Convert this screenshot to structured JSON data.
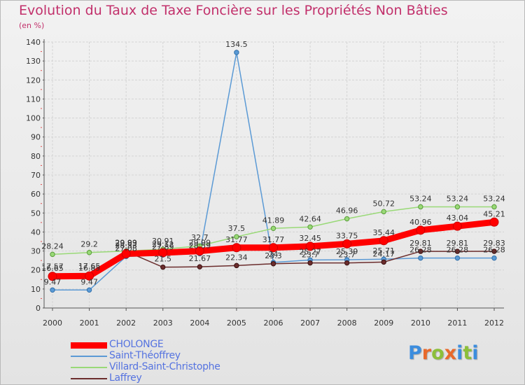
{
  "title": "Evolution du Taux de Taxe Foncière sur les Propriétés Non Bâties",
  "unit": "(en %)",
  "logo": {
    "letters": [
      "P",
      "r",
      "o",
      "x",
      "i",
      "t",
      "i"
    ],
    "colors": [
      "#3c8dde",
      "#e8692b",
      "#8cbf3a",
      "#e8692b",
      "#3c8dde",
      "#8cbf3a",
      "#3c8dde"
    ]
  },
  "chart_data": {
    "type": "line",
    "title": "Evolution du Taux de Taxe Foncière sur les Propriétés Non Bâties",
    "ylabel": "(en %)",
    "categories": [
      "2000",
      "2001",
      "2002",
      "2003",
      "2004",
      "2005",
      "2006",
      "2007",
      "2008",
      "2009",
      "2010",
      "2011",
      "2012"
    ],
    "ylim": [
      0,
      140
    ],
    "yticks": [
      0,
      10,
      20,
      30,
      40,
      50,
      60,
      70,
      80,
      90,
      100,
      110,
      120,
      130,
      140
    ],
    "grid": true,
    "series": [
      {
        "name": "CHOLONGE",
        "color": "#ff0000",
        "thick": true,
        "values": [
          16.65,
          16.85,
          28.53,
          29.12,
          29.99,
          31.77,
          31.77,
          32.45,
          33.75,
          35.44,
          40.96,
          43.04,
          45.21
        ],
        "labels": [
          "16.65",
          "16.85",
          "28.53",
          "29.12",
          "29.99",
          "31.77",
          "31.77",
          "32.45",
          "33.75",
          "35.44",
          "40.96",
          "43.04",
          "45.21"
        ]
      },
      {
        "name": "Saint-Théoffrey",
        "color": "#5b9ad5",
        "values": [
          9.47,
          9.47,
          27.08,
          27.89,
          28.59,
          134.5,
          24.0,
          25.27,
          25.39,
          25.71,
          26.28,
          26.28,
          26.28
        ],
        "labels": [
          "9.47",
          "9.47",
          "27.08",
          "27.89",
          "28.59",
          "134.5",
          "24",
          "25.27",
          "25.39",
          "25.71",
          "26.28",
          "26.28",
          "26.28"
        ]
      },
      {
        "name": "Villard-Saint-Christophe",
        "color": "#99d977",
        "values": [
          28.24,
          29.2,
          29.99,
          30.91,
          32.7,
          37.5,
          41.89,
          42.64,
          46.96,
          50.72,
          53.24,
          53.24,
          53.24
        ],
        "labels": [
          "28.24",
          "29.2",
          "29.99",
          "30.91",
          "32.7",
          "37.5",
          "41.89",
          "42.64",
          "46.96",
          "50.72",
          "53.24",
          "53.24",
          "53.24"
        ]
      },
      {
        "name": "Laffrey",
        "color": "#6b2d2d",
        "values": [
          17.57,
          17.65,
          29.83,
          21.5,
          21.67,
          22.34,
          23.3,
          23.7,
          23.7,
          24.17,
          29.81,
          29.81,
          29.83
        ],
        "labels": [
          "17.57",
          "17.65",
          "29.83",
          "21.5",
          "21.67",
          "22.34",
          "23.3",
          "23.7",
          "23.7",
          "24.17",
          "29.81",
          "29.81",
          "29.83"
        ]
      }
    ]
  }
}
